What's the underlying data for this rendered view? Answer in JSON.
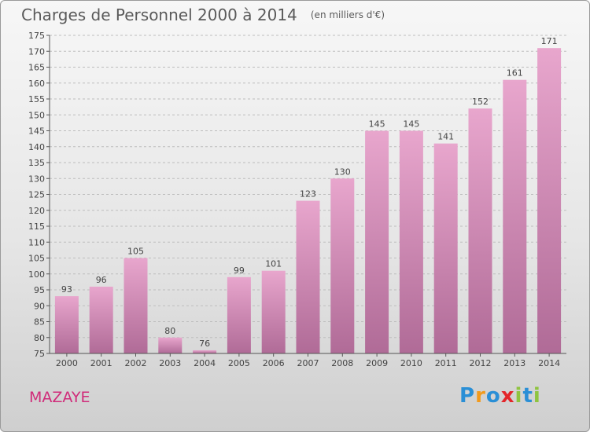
{
  "header": {
    "title": "Charges de Personnel 2000 à 2014",
    "unit": "(en milliers d'€)"
  },
  "footer": {
    "commune": "MAZAYE",
    "brand": [
      "P",
      "r",
      "o",
      "x",
      "i",
      "t",
      "i"
    ],
    "brand_colors": [
      "#2a8fd6",
      "#f29a1c",
      "#2a8fd6",
      "#e3262a",
      "#8fc43f",
      "#2a8fd6",
      "#8fc43f"
    ]
  },
  "colors": {
    "bar_top": "#e8a6cd",
    "bar_bottom": "#b06b97",
    "grid": "#bdbdbd",
    "axis": "#555555",
    "commune": "#d02c7a"
  },
  "chart_data": {
    "type": "bar",
    "title": "Charges de Personnel 2000 à 2014",
    "subtitle": "(en milliers d'€)",
    "xlabel": "",
    "ylabel": "",
    "categories": [
      "2000",
      "2001",
      "2002",
      "2003",
      "2004",
      "2005",
      "2006",
      "2007",
      "2008",
      "2009",
      "2010",
      "2011",
      "2012",
      "2013",
      "2014"
    ],
    "values": [
      93,
      96,
      105,
      80,
      76,
      99,
      101,
      123,
      130,
      145,
      145,
      141,
      152,
      161,
      171
    ],
    "ylim": [
      75,
      175
    ],
    "yticks": [
      75,
      80,
      85,
      90,
      95,
      100,
      105,
      110,
      115,
      120,
      125,
      130,
      135,
      140,
      145,
      150,
      155,
      160,
      165,
      170,
      175
    ],
    "grid": "horizontal dashed",
    "legend": "none"
  }
}
